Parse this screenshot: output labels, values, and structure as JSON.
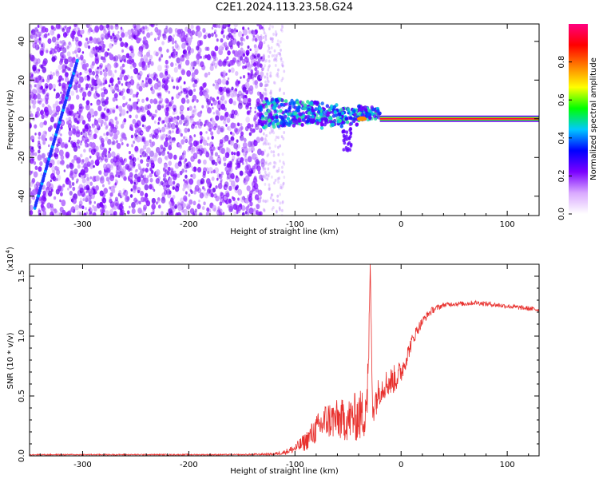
{
  "title": "C2E1.2024.113.23.58.G24",
  "chart_data": [
    {
      "type": "heatmap",
      "title": "",
      "xlabel": "Height of straight line (km)",
      "ylabel": "Frequency (Hz)",
      "xlim": [
        -350,
        130
      ],
      "ylim": [
        -50,
        49
      ],
      "x_ticks": [
        -300,
        -200,
        -100,
        0,
        100
      ],
      "y_ticks": [
        -40,
        -20,
        0,
        20,
        40
      ],
      "grid": false,
      "colorbar": {
        "label": "Normalized spectral amplitude",
        "range": [
          0.0,
          1.0
        ],
        "ticks": [
          "0.0",
          "0.2",
          "0.4",
          "0.6",
          "0.8"
        ],
        "colors": [
          "#ffffff",
          "#d9a8ff",
          "#7b00ff",
          "#0000ff",
          "#00c8ff",
          "#00ff00",
          "#ffff00",
          "#ff8000",
          "#ff0000",
          "#ff0080"
        ]
      },
      "features": {
        "noise_region_x": [
          -350,
          -130
        ],
        "noise_fade_x": [
          -130,
          -110
        ],
        "cluster_x": [
          -135,
          -20
        ],
        "cluster_freq": [
          -5,
          8
        ],
        "line_x": [
          -20,
          130
        ],
        "line_freq": 0,
        "diagonal_streak": {
          "x_start": -345,
          "y_start": -46,
          "x_end": -305,
          "y_end": 30
        }
      }
    },
    {
      "type": "line",
      "title": "",
      "xlabel": "Height of straight line (km)",
      "ylabel": "SNR (10 * v/v)",
      "scale_note": "(x10",
      "scale_exp": "4",
      "scale_close": ")",
      "xlim": [
        -350,
        130
      ],
      "ylim": [
        0,
        1.6
      ],
      "x_ticks": [
        -300,
        -200,
        -100,
        0,
        100
      ],
      "y_ticks": [
        "0.0",
        "0.5",
        "1.0",
        "1.5"
      ],
      "y_tick_values": [
        0,
        0.5,
        1.0,
        1.5
      ],
      "grid": false,
      "series": [
        {
          "color": "#e8312e",
          "x": [
            -350,
            -300,
            -250,
            -200,
            -150,
            -120,
            -110,
            -100,
            -90,
            -80,
            -70,
            -60,
            -50,
            -45,
            -40,
            -35,
            -31,
            -29,
            -27,
            -25,
            -20,
            -15,
            -10,
            -5,
            0,
            5,
            10,
            15,
            20,
            25,
            30,
            40,
            50,
            60,
            70,
            80,
            90,
            100,
            110,
            120,
            130
          ],
          "values": [
            0.01,
            0.01,
            0.01,
            0.01,
            0.01,
            0.015,
            0.03,
            0.06,
            0.12,
            0.22,
            0.3,
            0.3,
            0.3,
            0.32,
            0.33,
            0.35,
            0.6,
            1.6,
            0.4,
            0.45,
            0.55,
            0.6,
            0.62,
            0.65,
            0.7,
            0.82,
            0.95,
            1.05,
            1.12,
            1.18,
            1.22,
            1.26,
            1.27,
            1.27,
            1.28,
            1.27,
            1.26,
            1.25,
            1.24,
            1.23,
            1.22
          ],
          "noise_amp": [
            0.005,
            0.005,
            0.005,
            0.005,
            0.005,
            0.01,
            0.02,
            0.04,
            0.08,
            0.12,
            0.16,
            0.17,
            0.18,
            0.2,
            0.22,
            0.22,
            0.3,
            0.0,
            0.15,
            0.15,
            0.12,
            0.12,
            0.12,
            0.12,
            0.1,
            0.08,
            0.06,
            0.05,
            0.04,
            0.03,
            0.03,
            0.02,
            0.02,
            0.02,
            0.02,
            0.02,
            0.02,
            0.02,
            0.02,
            0.02,
            0.02
          ]
        }
      ]
    }
  ]
}
